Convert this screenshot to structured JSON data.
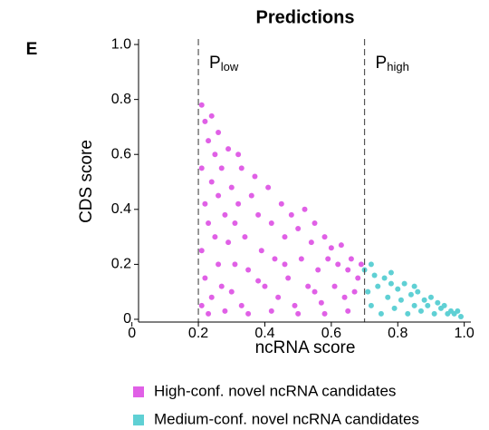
{
  "chart_data": {
    "type": "scatter",
    "panel_label": "E",
    "title": "Predictions",
    "x_label": "ncRNA score",
    "y_label": "CDS score",
    "xlim": [
      0.02,
      1.02
    ],
    "ylim": [
      -0.01,
      1.02
    ],
    "xticks": [
      0,
      0.2,
      0.4,
      0.6,
      0.8,
      {
        "value": 1,
        "label": "1.0"
      }
    ],
    "yticks": [
      0,
      0.2,
      0.4,
      0.6,
      0.8,
      {
        "value": 1,
        "label": "1.0"
      }
    ],
    "thresholds": [
      {
        "value": 0.2,
        "label": "P",
        "subscript": "low"
      },
      {
        "value": 0.7,
        "label": "P",
        "subscript": "high"
      }
    ],
    "series": [
      {
        "name": "High-conf. novel ncRNA candidates",
        "color": "#e060e6",
        "x": [
          0.21,
          0.22,
          0.23,
          0.21,
          0.25,
          0.24,
          0.22,
          0.27,
          0.26,
          0.23,
          0.29,
          0.3,
          0.28,
          0.25,
          0.21,
          0.22,
          0.24,
          0.21,
          0.26,
          0.27,
          0.29,
          0.31,
          0.33,
          0.32,
          0.34,
          0.35,
          0.3,
          0.33,
          0.36,
          0.37,
          0.38,
          0.39,
          0.4,
          0.41,
          0.42,
          0.43,
          0.44,
          0.45,
          0.46,
          0.47,
          0.48,
          0.49,
          0.5,
          0.51,
          0.52,
          0.53,
          0.54,
          0.55,
          0.56,
          0.57,
          0.58,
          0.59,
          0.6,
          0.61,
          0.62,
          0.63,
          0.64,
          0.65,
          0.66,
          0.67,
          0.68,
          0.69,
          0.23,
          0.28,
          0.35,
          0.42,
          0.5,
          0.58,
          0.65,
          0.31,
          0.38,
          0.46,
          0.55,
          0.26,
          0.24,
          0.32
        ],
        "values": [
          0.78,
          0.72,
          0.65,
          0.55,
          0.6,
          0.5,
          0.42,
          0.55,
          0.45,
          0.35,
          0.62,
          0.48,
          0.38,
          0.3,
          0.25,
          0.15,
          0.08,
          0.05,
          0.2,
          0.12,
          0.28,
          0.35,
          0.55,
          0.42,
          0.3,
          0.18,
          0.1,
          0.05,
          0.45,
          0.52,
          0.38,
          0.25,
          0.12,
          0.48,
          0.35,
          0.22,
          0.08,
          0.42,
          0.3,
          0.15,
          0.38,
          0.05,
          0.33,
          0.22,
          0.4,
          0.12,
          0.28,
          0.35,
          0.18,
          0.06,
          0.3,
          0.22,
          0.26,
          0.12,
          0.2,
          0.27,
          0.08,
          0.18,
          0.22,
          0.1,
          0.15,
          0.2,
          0.02,
          0.03,
          0.02,
          0.03,
          0.02,
          0.02,
          0.03,
          0.2,
          0.14,
          0.2,
          0.1,
          0.68,
          0.74,
          0.6
        ]
      },
      {
        "name": "Medium-conf. novel ncRNA candidates",
        "color": "#5fd0d4",
        "x": [
          0.7,
          0.71,
          0.72,
          0.73,
          0.74,
          0.75,
          0.76,
          0.77,
          0.78,
          0.79,
          0.8,
          0.81,
          0.82,
          0.83,
          0.84,
          0.85,
          0.86,
          0.87,
          0.88,
          0.89,
          0.9,
          0.91,
          0.92,
          0.93,
          0.94,
          0.95,
          0.96,
          0.97,
          0.98,
          0.99,
          0.72,
          0.78,
          0.85
        ],
        "values": [
          0.18,
          0.1,
          0.05,
          0.16,
          0.12,
          0.02,
          0.15,
          0.08,
          0.13,
          0.04,
          0.11,
          0.07,
          0.13,
          0.02,
          0.09,
          0.05,
          0.1,
          0.03,
          0.07,
          0.05,
          0.08,
          0.02,
          0.06,
          0.04,
          0.05,
          0.02,
          0.03,
          0.02,
          0.03,
          0.01,
          0.2,
          0.17,
          0.12
        ]
      }
    ]
  }
}
